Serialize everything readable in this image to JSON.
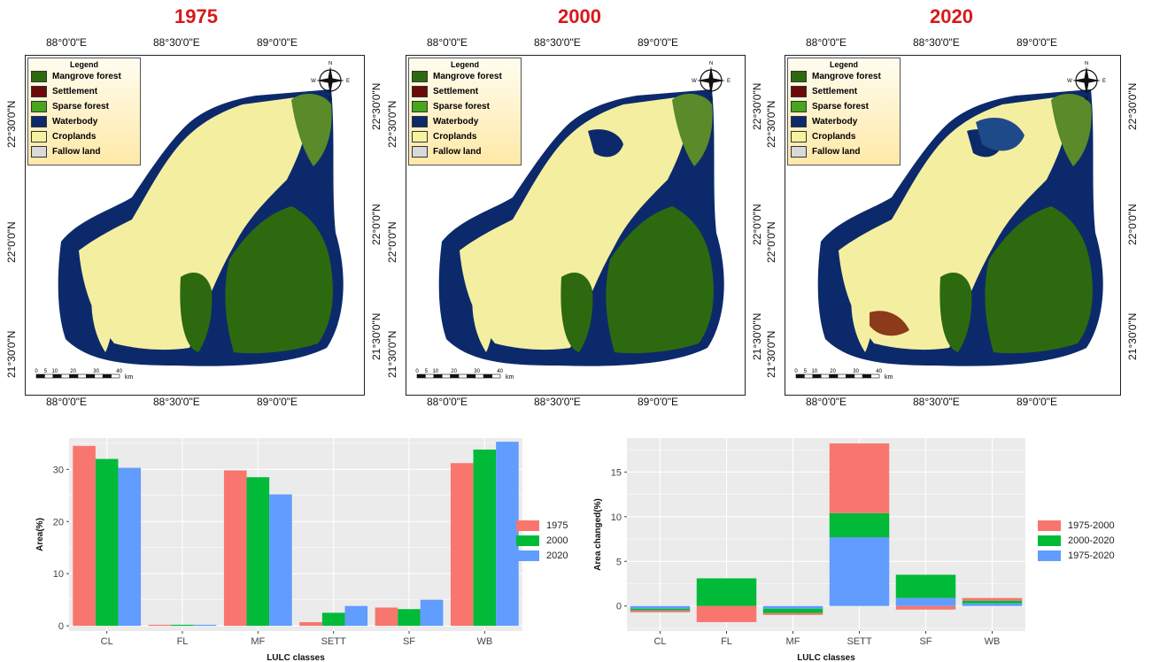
{
  "maps": [
    {
      "year": "1975",
      "top_labels": [
        "88°0'0\"E",
        "88°30'0\"E",
        "89°0'0\"E"
      ],
      "left_labels": [
        "22°30'0\"N",
        "22°0'0\"N",
        "21°30'0\"N"
      ],
      "right_labels": [
        "22°30'0\"N",
        "22°0'0\"N",
        "21°30'0\"N"
      ],
      "bottom_labels": [
        "88°0'0\"E",
        "88°30'0\"E",
        "89°0'0\"E"
      ]
    },
    {
      "year": "2000",
      "top_labels": [
        "88°0'0\"E",
        "88°30'0\"E",
        "89°0'0\"E"
      ],
      "left_labels": [
        "22°30'0\"N",
        "22°0'0\"N",
        "21°30'0\"N"
      ],
      "right_labels": [
        "22°30'0\"N",
        "22°0'0\"N",
        "21°30'0\"N"
      ],
      "bottom_labels": [
        "88°0'0\"E",
        "88°30'0\"E",
        "89°0'0\"E"
      ]
    },
    {
      "year": "2020",
      "top_labels": [
        "88°0'0\"E",
        "88°30'0\"E",
        "89°0'0\"E"
      ],
      "left_labels": [
        "22°30'0\"N",
        "22°0'0\"N",
        "21°30'0\"N"
      ],
      "right_labels": [
        "22°30'0\"N",
        "22°0'0\"N",
        "21°30'0\"N"
      ],
      "bottom_labels": [
        "88°0'0\"E",
        "88°30'0\"E",
        "89°0'0\"E"
      ]
    }
  ],
  "map_legend": {
    "title": "Legend",
    "items": [
      {
        "label": "Mangrove forest",
        "color": "#2d6a0f"
      },
      {
        "label": "Settlement",
        "color": "#6b0a0a"
      },
      {
        "label": "Sparse forest",
        "color": "#48a51e"
      },
      {
        "label": "Waterbody",
        "color": "#0c2a6b"
      },
      {
        "label": "Croplands",
        "color": "#f7f2a0"
      },
      {
        "label": "Fallow land",
        "color": "#d9d9d9"
      }
    ]
  },
  "scalebar": {
    "ticks": [
      "0",
      "5",
      "10",
      "20",
      "30",
      "40"
    ],
    "unit": "km"
  },
  "compass": {
    "n": "N",
    "s": "S",
    "e": "E",
    "w": "W"
  },
  "chart_data": [
    {
      "type": "bar",
      "categories": [
        "CL",
        "FL",
        "MF",
        "SETT",
        "SF",
        "WB"
      ],
      "series": [
        {
          "name": "1975",
          "color": "#f8766d",
          "values": [
            34.5,
            0.2,
            29.8,
            0.7,
            3.5,
            31.2
          ]
        },
        {
          "name": "2000",
          "color": "#00ba38",
          "values": [
            32.0,
            0.2,
            28.5,
            2.5,
            3.2,
            33.8
          ]
        },
        {
          "name": "2020",
          "color": "#619cff",
          "values": [
            30.3,
            0.2,
            25.2,
            3.8,
            5.0,
            35.3
          ]
        }
      ],
      "xlabel": "LULC classes",
      "ylabel": "Area(%)",
      "ylim": [
        -1,
        36
      ],
      "yticks": [
        0,
        10,
        20,
        30
      ],
      "legend": "right",
      "grid": true
    },
    {
      "type": "bar",
      "stacked": true,
      "categories": [
        "CL",
        "FL",
        "MF",
        "SETT",
        "SF",
        "WB"
      ],
      "series": [
        {
          "name": "1975-2000",
          "color": "#f8766d",
          "values": [
            -0.2,
            -1.8,
            -0.2,
            7.8,
            -0.4,
            0.3
          ]
        },
        {
          "name": "2000-2020",
          "color": "#00ba38",
          "values": [
            -0.2,
            3.1,
            -0.5,
            2.7,
            2.6,
            0.3
          ]
        },
        {
          "name": "1975-2020",
          "color": "#619cff",
          "values": [
            -0.3,
            0.0,
            -0.3,
            7.7,
            0.9,
            0.3
          ]
        }
      ],
      "xlabel": "LULC classes",
      "ylabel": "Area changed(%)",
      "ylim": [
        -2.8,
        18.8
      ],
      "yticks": [
        0,
        5,
        10,
        15
      ],
      "legend": "right",
      "grid": true
    }
  ]
}
